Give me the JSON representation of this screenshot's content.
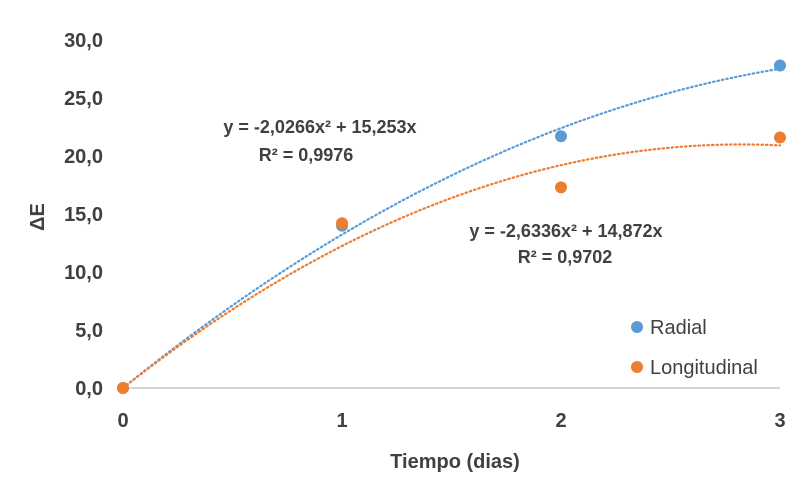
{
  "chart_data": {
    "type": "scatter",
    "xlabel": "Tiempo (dias)",
    "ylabel": "ΔE",
    "xlim": [
      0,
      3
    ],
    "ylim": [
      0,
      30
    ],
    "x_ticks": [
      "0",
      "1",
      "2",
      "3"
    ],
    "y_ticks": [
      "0,0",
      "5,0",
      "10,0",
      "15,0",
      "20,0",
      "25,0",
      "30,0"
    ],
    "grid": false,
    "legend_position": "bottom-right",
    "series": [
      {
        "name": "Radial",
        "color": "#5B9BD5",
        "x": [
          0,
          1,
          2,
          3
        ],
        "y": [
          0,
          14.0,
          21.7,
          27.8
        ],
        "trendline": {
          "type": "polynomial",
          "a": -2.0266,
          "b": 15.253,
          "equation": "y = -2,0266x² + 15,253x",
          "r2": "R² = 0,9976"
        }
      },
      {
        "name": "Longitudinal",
        "color": "#ED7D31",
        "x": [
          0,
          1,
          2,
          3
        ],
        "y": [
          0,
          14.2,
          17.3,
          21.6
        ],
        "trendline": {
          "type": "polynomial",
          "a": -2.6336,
          "b": 14.872,
          "equation": "y = -2,6336x² + 14,872x",
          "r2": "R² = 0,9702"
        }
      }
    ]
  }
}
